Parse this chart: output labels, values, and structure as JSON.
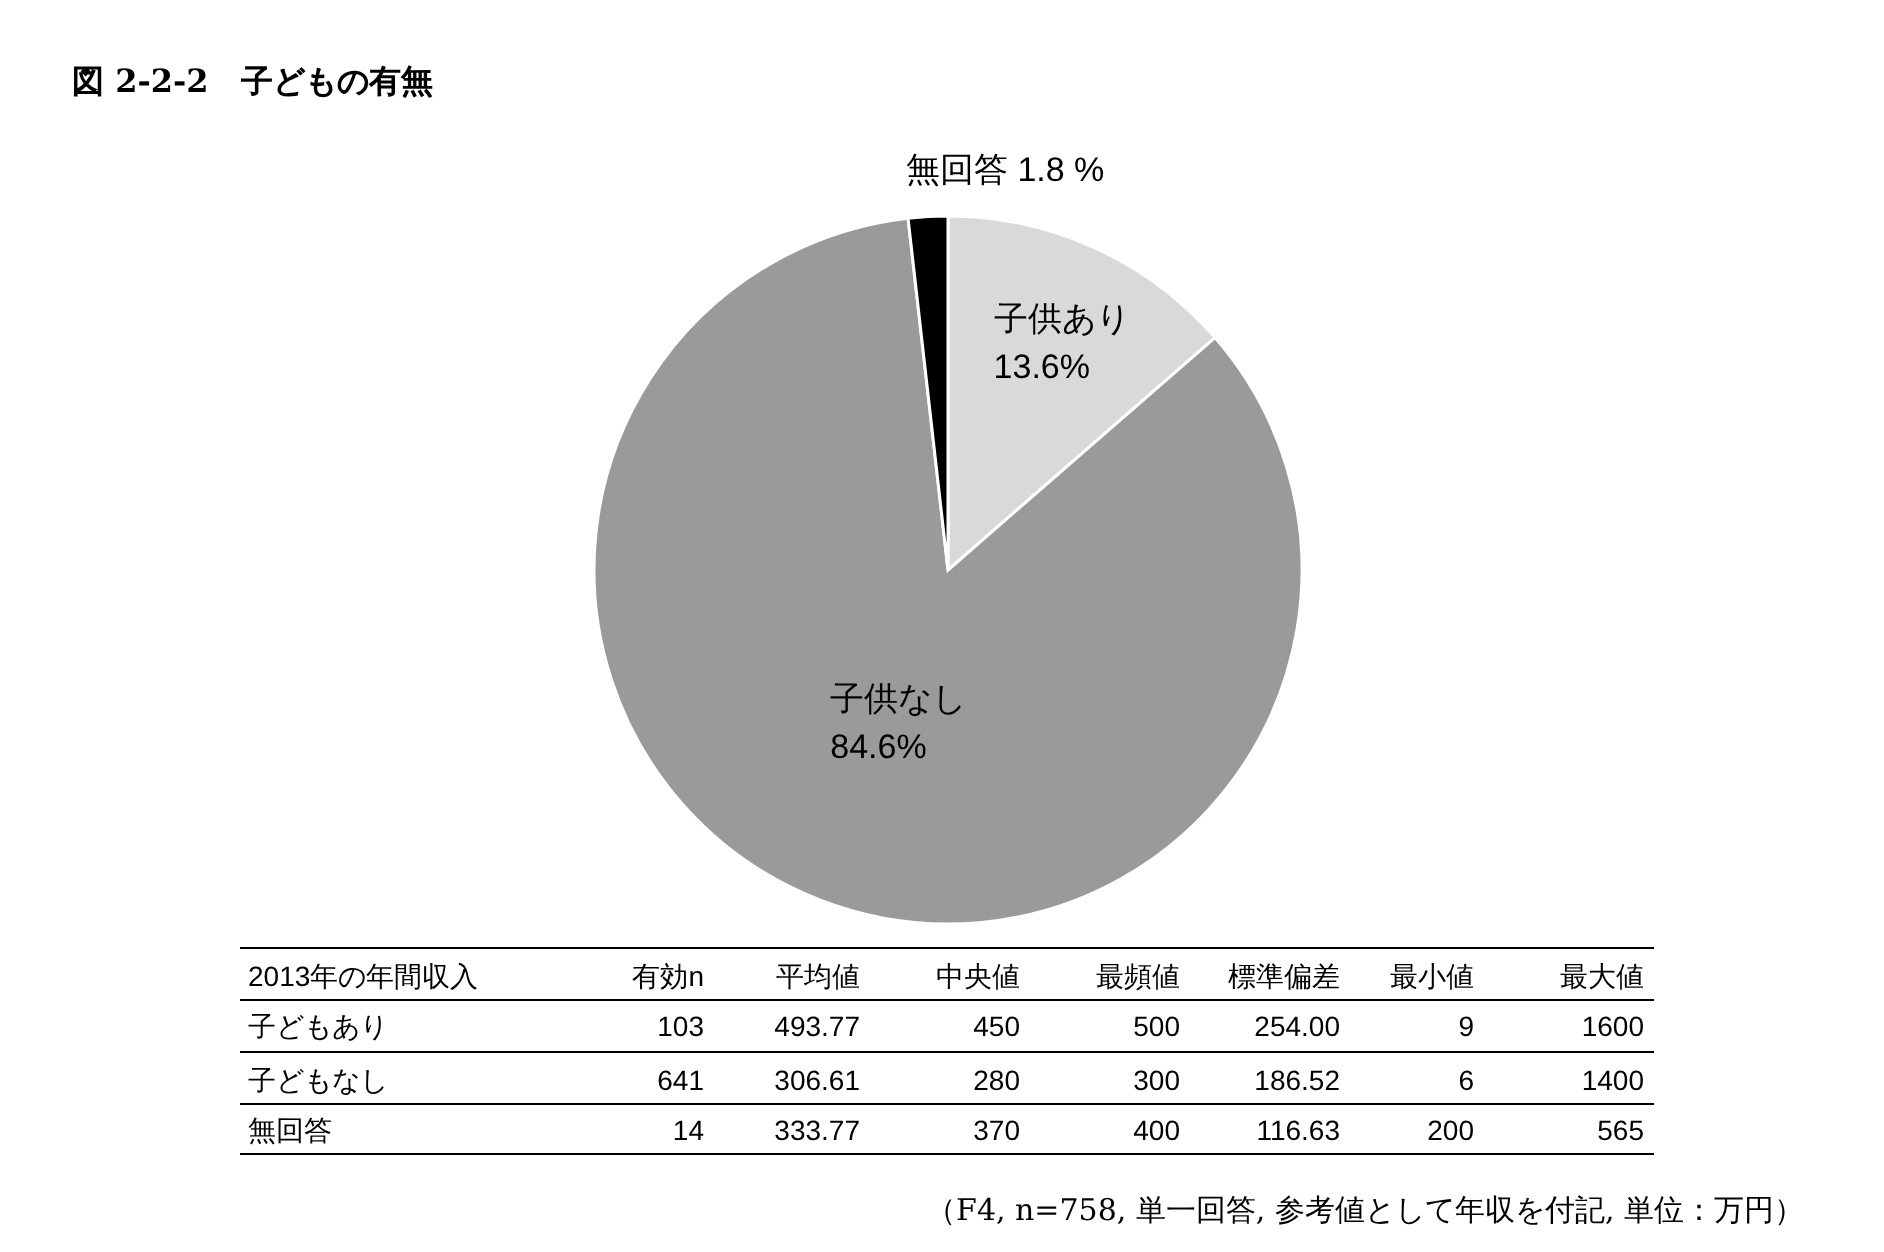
{
  "chart_data": [
    {
      "type": "pie",
      "title": "図 2-2-2　子どもの有無",
      "categories": [
        "子供あり",
        "子供なし",
        "無回答"
      ],
      "values": [
        13.6,
        84.6,
        1.8
      ],
      "value_labels": [
        "13.6%",
        "84.6%",
        "1.8 %"
      ],
      "colors": [
        "#d9d9d9",
        "#9a9a9a",
        "#000000"
      ],
      "annotations": [
        "（F4, n=758, 単一回答, 参考値として年収を付記, 単位：万円）"
      ]
    },
    {
      "type": "other",
      "categories": [
        "2013年の年間収入",
        "有効n",
        "平均値",
        "中央値",
        "最頻値",
        "標準偏差",
        "最小値",
        "最大値"
      ],
      "y_categories": [
        "子どもあり",
        "子どもなし",
        "無回答"
      ],
      "cell_labels": [
        [
          "103",
          "493.77",
          "450",
          "500",
          "254.00",
          "9",
          "1600"
        ],
        [
          "641",
          "306.61",
          "280",
          "300",
          "186.52",
          "6",
          "1400"
        ],
        [
          "14",
          "333.77",
          "370",
          "400",
          "116.63",
          "200",
          "565"
        ]
      ]
    }
  ]
}
